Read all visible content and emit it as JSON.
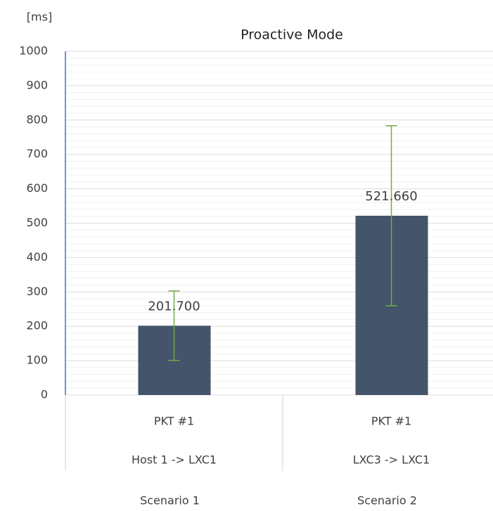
{
  "chart_data": {
    "type": "bar",
    "title": "Proactive Mode",
    "y_label": "[ms]",
    "categories": [
      "PKT #1",
      "PKT #1"
    ],
    "subcategories": [
      "Host 1 -> LXC1",
      "LXC3 -> LXC1"
    ],
    "groups": [
      "Scenario 1",
      "Scenario 2"
    ],
    "values": [
      201.7,
      521.66
    ],
    "value_labels": [
      "201.700",
      "521.660"
    ],
    "errors": [
      101,
      262
    ],
    "color": "#44546a",
    "error_color": "#70ad47",
    "ylim": [
      0,
      1000
    ],
    "yticks": [
      0,
      100,
      200,
      300,
      400,
      500,
      600,
      700,
      800,
      900,
      1000
    ],
    "grid": true
  }
}
